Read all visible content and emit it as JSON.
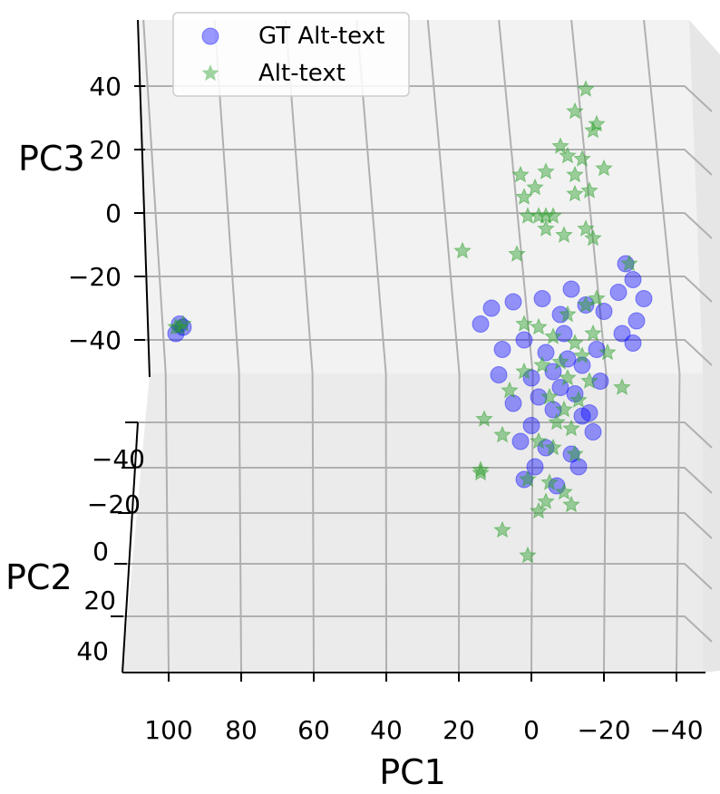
{
  "chart_data": {
    "type": "scatter",
    "projection": "3d",
    "axes": {
      "x": {
        "label": "PC1",
        "ticks": [
          100,
          80,
          60,
          40,
          20,
          0,
          -20,
          -40
        ],
        "tick_labels": [
          "100",
          "80",
          "60",
          "40",
          "20",
          "0",
          "−20",
          "−40"
        ],
        "direction": "decreasing-left-to-right"
      },
      "y": {
        "label": "PC2",
        "ticks": [
          -40,
          -20,
          0,
          20,
          40
        ],
        "tick_labels": [
          "−40",
          "−20",
          "0",
          "20",
          "40"
        ]
      },
      "z": {
        "label": "PC3",
        "ticks": [
          40,
          20,
          0,
          -20,
          -40
        ],
        "tick_labels": [
          "40",
          "20",
          "0",
          "−20",
          "−40"
        ]
      }
    },
    "grid": true,
    "legend": {
      "placement": "top",
      "entries": [
        {
          "label": "GT Alt-text",
          "marker": "circle",
          "color": "#0000ff"
        },
        {
          "label": "Alt-text",
          "marker": "star",
          "color": "#2ca02c"
        }
      ]
    },
    "series": [
      {
        "name": "GT Alt-text",
        "marker": "circle",
        "color": "#0000ff",
        "points": [
          {
            "x": 98,
            "y": 0,
            "z": -38
          },
          {
            "x": 97,
            "y": 0,
            "z": -35
          },
          {
            "x": 96,
            "y": 0,
            "z": -36
          },
          {
            "x": -26,
            "y": 0,
            "z": -16
          },
          {
            "x": -28,
            "y": 0,
            "z": -21
          },
          {
            "x": -24,
            "y": 0,
            "z": -25
          },
          {
            "x": -31,
            "y": 0,
            "z": -27
          },
          {
            "x": -29,
            "y": 0,
            "z": -34
          },
          {
            "x": -25,
            "y": 0,
            "z": -38
          },
          {
            "x": -28,
            "y": 0,
            "z": -41
          },
          {
            "x": -11,
            "y": 0,
            "z": -24
          },
          {
            "x": -15,
            "y": 0,
            "z": -29
          },
          {
            "x": -20,
            "y": 0,
            "z": -31
          },
          {
            "x": -8,
            "y": 0,
            "z": -32
          },
          {
            "x": -3,
            "y": 0,
            "z": -27
          },
          {
            "x": 5,
            "y": 0,
            "z": -28
          },
          {
            "x": 11,
            "y": 0,
            "z": -30
          },
          {
            "x": 14,
            "y": 0,
            "z": -35
          },
          {
            "x": 2,
            "y": 0,
            "z": -40
          },
          {
            "x": 8,
            "y": 0,
            "z": -43
          },
          {
            "x": -4,
            "y": 0,
            "z": -44
          },
          {
            "x": -10,
            "y": 0,
            "z": -46
          },
          {
            "x": -14,
            "y": 0,
            "z": -48
          },
          {
            "x": -18,
            "y": 0,
            "z": -43
          },
          {
            "x": -6,
            "y": 0,
            "z": -50
          },
          {
            "x": 0,
            "y": 0,
            "z": -52
          },
          {
            "x": -8,
            "y": 0,
            "z": -55
          },
          {
            "x": -12,
            "y": 0,
            "z": -57
          },
          {
            "x": -2,
            "y": 0,
            "z": -58
          },
          {
            "x": 5,
            "y": 0,
            "z": -60
          },
          {
            "x": -6,
            "y": 0,
            "z": -62
          },
          {
            "x": -14,
            "y": 0,
            "z": -64
          },
          {
            "x": -17,
            "y": 0,
            "z": -69
          },
          {
            "x": 3,
            "y": 0,
            "z": -72
          },
          {
            "x": -4,
            "y": 0,
            "z": -74
          },
          {
            "x": -11,
            "y": 0,
            "z": -76
          },
          {
            "x": -13,
            "y": 0,
            "z": -80
          },
          {
            "x": -1,
            "y": 0,
            "z": -80
          },
          {
            "x": 2,
            "y": 0,
            "z": -84
          },
          {
            "x": -7,
            "y": 0,
            "z": -86
          },
          {
            "x": -16,
            "y": 0,
            "z": -63
          },
          {
            "x": -19,
            "y": 0,
            "z": -53
          },
          {
            "x": -9,
            "y": 0,
            "z": -38
          },
          {
            "x": 9,
            "y": 0,
            "z": -51
          },
          {
            "x": 0,
            "y": 0,
            "z": -67
          }
        ]
      },
      {
        "name": "Alt-text",
        "marker": "star",
        "color": "#2ca02c",
        "points": [
          {
            "x": 97,
            "y": 0,
            "z": -36
          },
          {
            "x": 96,
            "y": 0,
            "z": -35
          },
          {
            "x": 98,
            "y": 0,
            "z": -36
          },
          {
            "x": -15,
            "y": 0,
            "z": 39
          },
          {
            "x": -12,
            "y": 0,
            "z": 32
          },
          {
            "x": -18,
            "y": 0,
            "z": 28
          },
          {
            "x": -17,
            "y": 0,
            "z": 26
          },
          {
            "x": -8,
            "y": 0,
            "z": 21
          },
          {
            "x": -10,
            "y": 0,
            "z": 18
          },
          {
            "x": -14,
            "y": 0,
            "z": 17
          },
          {
            "x": -20,
            "y": 0,
            "z": 14
          },
          {
            "x": -4,
            "y": 0,
            "z": 13
          },
          {
            "x": -12,
            "y": 0,
            "z": 12
          },
          {
            "x": 3,
            "y": 0,
            "z": 12
          },
          {
            "x": -1,
            "y": 0,
            "z": 8
          },
          {
            "x": -16,
            "y": 0,
            "z": 7
          },
          {
            "x": -12,
            "y": 0,
            "z": 6
          },
          {
            "x": 2,
            "y": 0,
            "z": 5
          },
          {
            "x": 1,
            "y": 0,
            "z": -1
          },
          {
            "x": -2,
            "y": 0,
            "z": -1
          },
          {
            "x": -4,
            "y": 0,
            "z": -1
          },
          {
            "x": -6,
            "y": 0,
            "z": -1
          },
          {
            "x": -4,
            "y": 0,
            "z": -5
          },
          {
            "x": -9,
            "y": 0,
            "z": -7
          },
          {
            "x": -15,
            "y": 0,
            "z": -5
          },
          {
            "x": -17,
            "y": 0,
            "z": -8
          },
          {
            "x": 19,
            "y": 0,
            "z": -12
          },
          {
            "x": 4,
            "y": 0,
            "z": -13
          },
          {
            "x": -27,
            "y": 0,
            "z": -16
          },
          {
            "x": -18,
            "y": 0,
            "z": -27
          },
          {
            "x": -15,
            "y": 0,
            "z": -29
          },
          {
            "x": -10,
            "y": 0,
            "z": -32
          },
          {
            "x": 2,
            "y": 0,
            "z": -35
          },
          {
            "x": -2,
            "y": 0,
            "z": -36
          },
          {
            "x": -6,
            "y": 0,
            "z": -39
          },
          {
            "x": -12,
            "y": 0,
            "z": -41
          },
          {
            "x": -17,
            "y": 0,
            "z": -38
          },
          {
            "x": -21,
            "y": 0,
            "z": -44
          },
          {
            "x": -14,
            "y": 0,
            "z": -45
          },
          {
            "x": -8,
            "y": 0,
            "z": -47
          },
          {
            "x": -3,
            "y": 0,
            "z": -48
          },
          {
            "x": 2,
            "y": 0,
            "z": -50
          },
          {
            "x": -10,
            "y": 0,
            "z": -52
          },
          {
            "x": -16,
            "y": 0,
            "z": -53
          },
          {
            "x": -25,
            "y": 0,
            "z": -55
          },
          {
            "x": 6,
            "y": 0,
            "z": -56
          },
          {
            "x": -5,
            "y": 0,
            "z": -58
          },
          {
            "x": -13,
            "y": 0,
            "z": -59
          },
          {
            "x": -9,
            "y": 0,
            "z": -62
          },
          {
            "x": 13,
            "y": 0,
            "z": -65
          },
          {
            "x": -7,
            "y": 0,
            "z": -66
          },
          {
            "x": -11,
            "y": 0,
            "z": -68
          },
          {
            "x": 8,
            "y": 0,
            "z": -70
          },
          {
            "x": -2,
            "y": 0,
            "z": -72
          },
          {
            "x": -6,
            "y": 0,
            "z": -74
          },
          {
            "x": -12,
            "y": 0,
            "z": -76
          },
          {
            "x": 14,
            "y": 0,
            "z": -81
          },
          {
            "x": 14,
            "y": 0,
            "z": -82
          },
          {
            "x": 1,
            "y": 0,
            "z": -84
          },
          {
            "x": -5,
            "y": 0,
            "z": -85
          },
          {
            "x": -9,
            "y": 0,
            "z": -88
          },
          {
            "x": -4,
            "y": 0,
            "z": -91
          },
          {
            "x": -11,
            "y": 0,
            "z": -92
          },
          {
            "x": 8,
            "y": 0,
            "z": -100
          },
          {
            "x": 1,
            "y": 0,
            "z": -108
          },
          {
            "x": -2,
            "y": 0,
            "z": -94
          }
        ]
      }
    ]
  }
}
